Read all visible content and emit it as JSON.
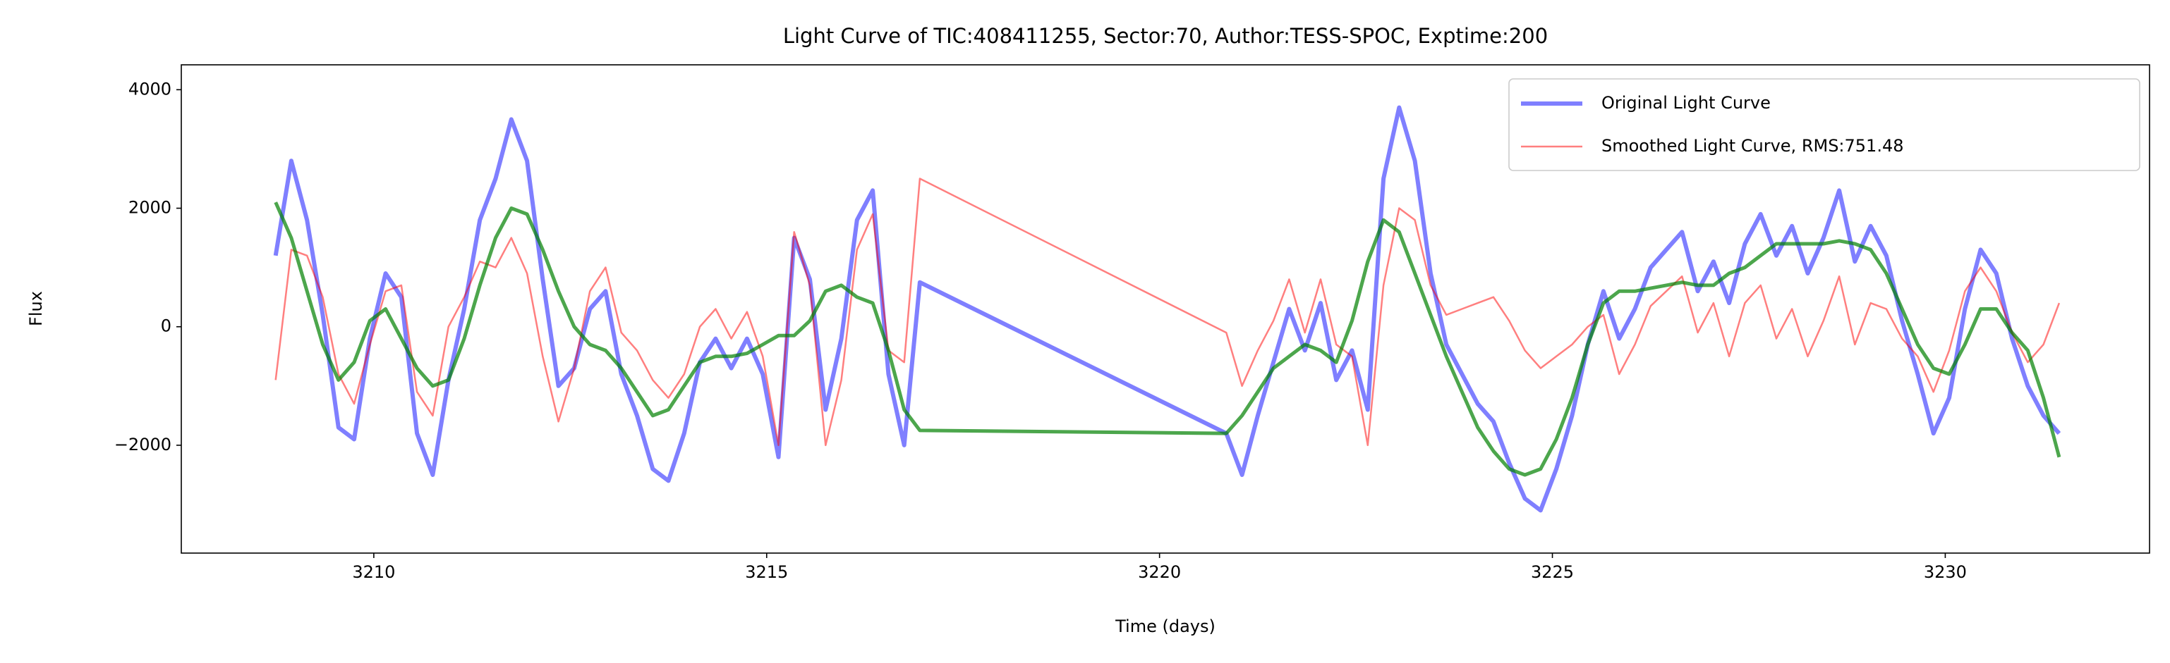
{
  "chart_data": {
    "type": "line",
    "title": "Light Curve of TIC:408411255, Sector:70, Author:TESS-SPOC, Exptime:200",
    "xlabel": "Time (days)",
    "ylabel": "Flux",
    "xlim": [
      3207.55,
      3232.6
    ],
    "ylim": [
      -3820,
      4420
    ],
    "xticks": [
      3210,
      3215,
      3220,
      3225,
      3230
    ],
    "yticks": [
      {
        "value": -2000,
        "label": "−2000"
      },
      0,
      2000,
      4000
    ],
    "grid": false,
    "legend": "upper right",
    "x": [
      3208.75,
      3208.95,
      3209.15,
      3209.35,
      3209.55,
      3209.75,
      3209.95,
      3210.15,
      3210.35,
      3210.55,
      3210.75,
      3210.95,
      3211.15,
      3211.35,
      3211.55,
      3211.75,
      3211.95,
      3212.15,
      3212.35,
      3212.55,
      3212.75,
      3212.95,
      3213.15,
      3213.35,
      3213.55,
      3213.75,
      3213.95,
      3214.15,
      3214.35,
      3214.55,
      3214.75,
      3214.95,
      3215.15,
      3215.35,
      3215.55,
      3215.75,
      3215.95,
      3216.15,
      3216.35,
      3216.55,
      3216.75,
      3216.95,
      3220.85,
      3221.05,
      3221.25,
      3221.45,
      3221.65,
      3221.85,
      3222.05,
      3222.25,
      3222.45,
      3222.65,
      3222.85,
      3223.05,
      3223.25,
      3223.45,
      3223.65,
      3223.85,
      3224.05,
      3224.25,
      3224.45,
      3224.65,
      3224.85,
      3225.05,
      3225.25,
      3225.45,
      3225.65,
      3225.85,
      3226.05,
      3226.25,
      3226.45,
      3226.65,
      3226.85,
      3227.05,
      3227.25,
      3227.45,
      3227.65,
      3227.85,
      3228.05,
      3228.25,
      3228.45,
      3228.65,
      3228.85,
      3229.05,
      3229.25,
      3229.45,
      3229.65,
      3229.85,
      3230.05,
      3230.25,
      3230.45,
      3230.65,
      3230.85,
      3231.05,
      3231.25,
      3231.45
    ],
    "series": [
      {
        "name": "Original Light Curve",
        "color": "#0000ff",
        "opacity": 0.5,
        "width": 6,
        "values": [
          1200,
          2800,
          1800,
          200,
          -1700,
          -1900,
          -200,
          900,
          500,
          -1800,
          -2500,
          -900,
          300,
          1800,
          2500,
          3500,
          2800,
          800,
          -1000,
          -700,
          300,
          600,
          -800,
          -1500,
          -2400,
          -2600,
          -1800,
          -600,
          -200,
          -700,
          -200,
          -800,
          -2200,
          1500,
          800,
          -1400,
          -200,
          1800,
          2300,
          -800,
          -2000,
          750,
          -1800,
          -2500,
          -1500,
          -600,
          300,
          -400,
          400,
          -900,
          -400,
          -1400,
          2500,
          3700,
          2800,
          900,
          -300,
          -800,
          -1300,
          -1600,
          -2300,
          -2900,
          -3100,
          -2400,
          -1500,
          -300,
          600,
          -200,
          300,
          1000,
          1300,
          1600,
          600,
          1100,
          400,
          1400,
          1900,
          1200,
          1700,
          900,
          1500,
          2300,
          1100,
          1700,
          1200,
          100,
          -800,
          -1800,
          -1200,
          300,
          1300,
          900,
          -200,
          -1000,
          -1500,
          -1800
        ]
      },
      {
        "name": "Smoothed Light Curve, RMS:751.48",
        "color": "#ff0000",
        "opacity": 0.5,
        "width": 2.5,
        "values": [
          -900,
          1300,
          1200,
          500,
          -800,
          -1300,
          -300,
          600,
          700,
          -1100,
          -1500,
          0,
          500,
          1100,
          1000,
          1500,
          900,
          -500,
          -1600,
          -700,
          600,
          1000,
          -100,
          -400,
          -900,
          -1200,
          -800,
          0,
          300,
          -200,
          250,
          -500,
          -2000,
          1600,
          700,
          -2000,
          -900,
          1300,
          1900,
          -400,
          -600,
          2500,
          -100,
          -1000,
          -400,
          100,
          800,
          -100,
          800,
          -300,
          -500,
          -2000,
          700,
          2000,
          1800,
          700,
          200,
          300,
          400,
          500,
          100,
          -400,
          -700,
          -500,
          -300,
          0,
          200,
          -800,
          -300,
          350,
          600,
          850,
          -100,
          400,
          -500,
          400,
          700,
          -200,
          300,
          -500,
          100,
          850,
          -300,
          400,
          300,
          -200,
          -500,
          -1100,
          -400,
          600,
          1000,
          600,
          -100,
          -600,
          -300,
          400
        ]
      },
      {
        "color": "#008000",
        "opacity": 0.7,
        "width": 5,
        "values": [
          2100,
          1500,
          600,
          -300,
          -900,
          -600,
          100,
          300,
          -200,
          -700,
          -1000,
          -900,
          -200,
          700,
          1500,
          2000,
          1900,
          1300,
          600,
          0,
          -300,
          -400,
          -700,
          -1100,
          -1500,
          -1400,
          -1000,
          -600,
          -500,
          -500,
          -450,
          -300,
          -150,
          -150,
          100,
          600,
          700,
          500,
          400,
          -400,
          -1400,
          -1750,
          -1800,
          -1500,
          -1100,
          -700,
          -500,
          -300,
          -400,
          -600,
          100,
          1100,
          1800,
          1600,
          900,
          200,
          -500,
          -1100,
          -1700,
          -2100,
          -2400,
          -2500,
          -2400,
          -1900,
          -1200,
          -300,
          400,
          600,
          600,
          650,
          700,
          750,
          700,
          700,
          900,
          1000,
          1200,
          1400,
          1400,
          1400,
          1400,
          1450,
          1400,
          1300,
          900,
          300,
          -300,
          -700,
          -800,
          -300,
          300,
          300,
          -100,
          -400,
          -1200,
          -2200
        ]
      }
    ]
  }
}
